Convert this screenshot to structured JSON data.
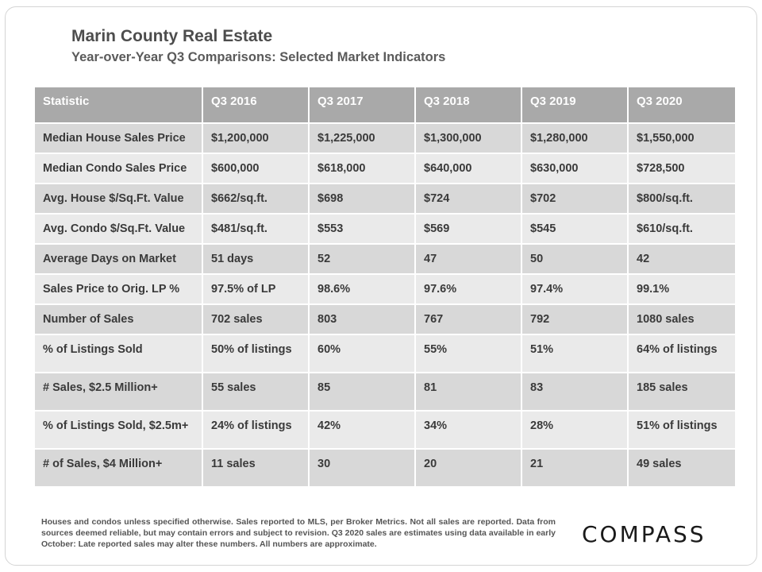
{
  "header": {
    "title": "Marin County Real Estate",
    "subtitle": "Year-over-Year  Q3 Comparisons:  Selected Market Indicators"
  },
  "table": {
    "columns": [
      "Statistic",
      "Q3 2016",
      "Q3 2017",
      "Q3 2018",
      "Q3 2019",
      "Q3 2020"
    ],
    "rows": [
      [
        "Median House Sales Price",
        "$1,200,000",
        "$1,225,000",
        "$1,300,000",
        "$1,280,000",
        "$1,550,000"
      ],
      [
        "Median Condo Sales Price",
        "$600,000",
        "$618,000",
        "$640,000",
        "$630,000",
        "$728,500"
      ],
      [
        "Avg. House $/Sq.Ft. Value",
        "$662/sq.ft.",
        "$698",
        "$724",
        "$702",
        "$800/sq.ft."
      ],
      [
        "Avg. Condo $/Sq.Ft. Value",
        "$481/sq.ft.",
        "$553",
        "$569",
        "$545",
        "$610/sq.ft."
      ],
      [
        "Average Days on Market",
        "51 days",
        "52",
        "47",
        "50",
        "42"
      ],
      [
        "Sales Price to Orig. LP %",
        "97.5% of LP",
        "98.6%",
        "97.6%",
        "97.4%",
        "99.1%"
      ],
      [
        "Number of Sales",
        "702 sales",
        "803",
        "767",
        "792",
        "1080 sales"
      ],
      [
        "% of Listings Sold",
        "50% of listings",
        "60%",
        "55%",
        "51%",
        "64% of listings"
      ],
      [
        "# Sales, $2.5 Million+",
        "55 sales",
        "85",
        "81",
        "83",
        "185 sales"
      ],
      [
        "% of Listings Sold, $2.5m+",
        "24% of listings",
        "42%",
        "34%",
        "28%",
        "51% of listings"
      ],
      [
        "# of Sales, $4 Million+",
        "11 sales",
        "30",
        "20",
        "21",
        "49 sales"
      ]
    ]
  },
  "footnote": "Houses and condos unless specified otherwise. Sales reported to MLS, per Broker Metrics. Not all sales are reported. Data from sources deemed reliable, but may contain errors and subject to revision. Q3 2020 sales are estimates using data available in early October: Late reported sales may alter these numbers. All numbers are approximate.",
  "logo": {
    "text": "COMPASS"
  }
}
